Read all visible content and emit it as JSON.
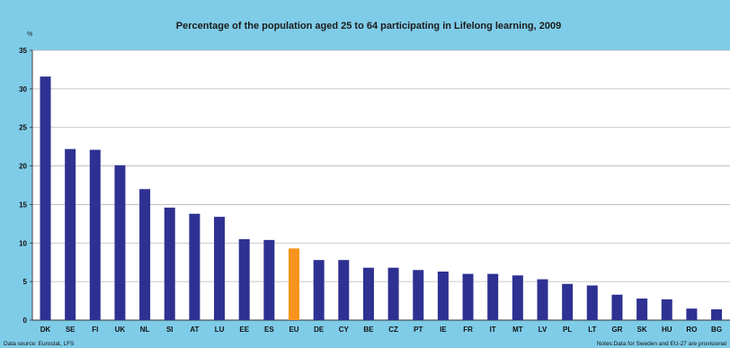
{
  "colors": {
    "background": "#7fcce8",
    "plot_area": "#ffffff",
    "bar": "#2e3192",
    "highlight_bar": "#f7941d",
    "gridline": "#b8b8b8",
    "axis": "#333333"
  },
  "footer": {
    "source": "Data source: Eurostat, LFS",
    "notes": "Notes:Data for Sweden and EU-27 are provisional"
  },
  "chart_data": {
    "type": "bar",
    "title": "Percentage of the population aged 25 to 64 participating in Lifelong learning, 2009",
    "ylabel": "%",
    "xlabel": "",
    "ylim": [
      0,
      35
    ],
    "yticks": [
      0,
      5,
      10,
      15,
      20,
      25,
      30,
      35
    ],
    "grid": true,
    "legend": "none",
    "highlight_category": "EU",
    "categories": [
      "DK",
      "SE",
      "FI",
      "UK",
      "NL",
      "SI",
      "AT",
      "LU",
      "EE",
      "ES",
      "EU",
      "DE",
      "CY",
      "BE",
      "CZ",
      "PT",
      "IE",
      "FR",
      "IT",
      "MT",
      "LV",
      "PL",
      "LT",
      "GR",
      "SK",
      "HU",
      "RO",
      "BG"
    ],
    "values": [
      31.6,
      22.2,
      22.1,
      20.1,
      17.0,
      14.6,
      13.8,
      13.4,
      10.5,
      10.4,
      9.3,
      7.8,
      7.8,
      6.8,
      6.8,
      6.5,
      6.3,
      6.0,
      6.0,
      5.8,
      5.3,
      4.7,
      4.5,
      3.3,
      2.8,
      2.7,
      1.5,
      1.4
    ]
  }
}
